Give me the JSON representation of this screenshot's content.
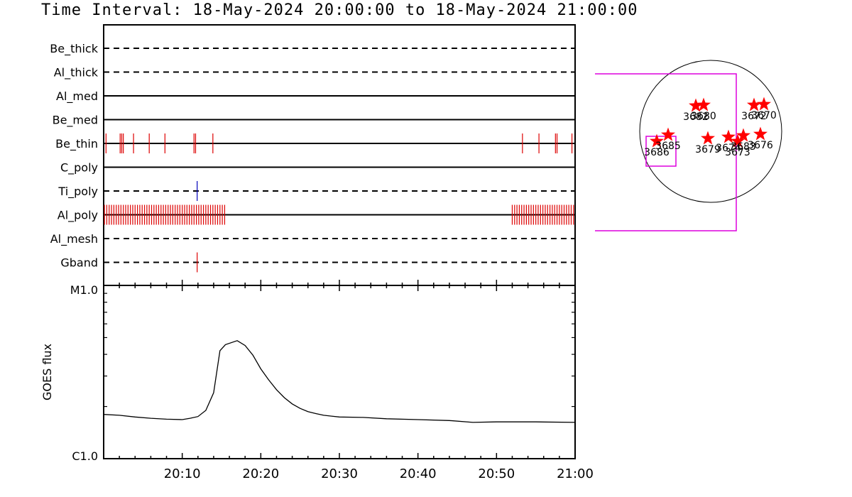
{
  "title": "Time Interval: 18-May-2024 20:00:00 to 18-May-2024 21:00:00",
  "colors": {
    "events": "#dd0000",
    "ti_event": "#0000bb",
    "frame": "#000000",
    "fov": "#dd00dd",
    "star": "#ff0000"
  },
  "chart_data": [
    {
      "type": "timeline",
      "channels": [
        {
          "label": "Be_thick",
          "style": "dashed",
          "events": []
        },
        {
          "label": "Al_thick",
          "style": "dashed",
          "events": []
        },
        {
          "label": "Al_med",
          "style": "solid",
          "events": []
        },
        {
          "label": "Be_med",
          "style": "solid",
          "events": []
        },
        {
          "label": "Be_thin",
          "style": "solid",
          "events": [
            0.3,
            2.1,
            2.3,
            2.5,
            3.8,
            5.8,
            7.8,
            11.5,
            11.7,
            13.9,
            53.3,
            55.4,
            57.5,
            57.7,
            59.6
          ]
        },
        {
          "label": "C_poly",
          "style": "solid",
          "events": []
        },
        {
          "label": "Ti_poly",
          "style": "dashed",
          "events": [
            11.9
          ],
          "event_color": "#0000bb"
        },
        {
          "label": "Al_poly",
          "style": "solid",
          "events": [
            0.1,
            0.4,
            0.7,
            1.0,
            1.3,
            1.6,
            1.9,
            2.2,
            2.5,
            2.8,
            3.1,
            3.4,
            3.7,
            4.0,
            4.3,
            4.6,
            4.9,
            5.2,
            5.5,
            5.8,
            6.1,
            6.4,
            6.7,
            7.0,
            7.3,
            7.6,
            7.9,
            8.2,
            8.5,
            8.8,
            9.1,
            9.4,
            9.7,
            10.0,
            10.3,
            10.6,
            10.9,
            11.2,
            11.5,
            11.8,
            12.1,
            12.4,
            12.7,
            13.0,
            13.3,
            13.6,
            13.9,
            14.2,
            14.5,
            14.8,
            15.1,
            15.4,
            52.0,
            52.3,
            52.6,
            52.9,
            53.2,
            53.5,
            53.8,
            54.1,
            54.4,
            54.7,
            55.0,
            55.3,
            55.6,
            55.9,
            56.2,
            56.5,
            56.8,
            57.1,
            57.4,
            57.7,
            58.0,
            58.3,
            58.6,
            58.9,
            59.2,
            59.5,
            59.8
          ]
        },
        {
          "label": "Al_mesh",
          "style": "dashed",
          "events": []
        },
        {
          "label": "Gband",
          "style": "dashed",
          "events": [
            11.9
          ]
        }
      ]
    },
    {
      "type": "line",
      "ylabel": "GOES flux",
      "ylim": [
        1e-06,
        1e-05
      ],
      "ytick_labels": [
        "M1.0",
        "C1.0"
      ],
      "xlim": [
        0,
        60
      ],
      "x_ticks": [
        10,
        20,
        30,
        40,
        50,
        60
      ],
      "x_tick_labels": [
        "20:10",
        "20:20",
        "20:30",
        "20:40",
        "20:50",
        "21:00"
      ],
      "x": [
        0,
        2,
        4,
        6,
        8,
        10,
        11,
        12,
        13,
        14,
        14.8,
        15.5,
        17,
        18,
        19,
        20,
        21,
        22,
        23,
        24,
        25,
        26,
        27,
        28,
        29,
        30,
        33,
        36,
        40,
        44,
        47,
        50,
        55,
        60
      ],
      "y": [
        1.8e-06,
        1.78e-06,
        1.74e-06,
        1.71e-06,
        1.69e-06,
        1.68e-06,
        1.71e-06,
        1.75e-06,
        1.9e-06,
        2.4e-06,
        4.2e-06,
        4.55e-06,
        4.8e-06,
        4.5e-06,
        3.95e-06,
        3.3e-06,
        2.85e-06,
        2.5e-06,
        2.25e-06,
        2.07e-06,
        1.95e-06,
        1.87e-06,
        1.82e-06,
        1.78e-06,
        1.76e-06,
        1.74e-06,
        1.73e-06,
        1.7e-06,
        1.68e-06,
        1.66e-06,
        1.62e-06,
        1.63e-06,
        1.63e-06,
        1.62e-06
      ]
    },
    {
      "type": "scatter",
      "description": "solar disk map with active regions",
      "regions": [
        {
          "id": "3686",
          "dx": -0.76,
          "dy": 0.14
        },
        {
          "id": "3685",
          "dx": -0.6,
          "dy": 0.05
        },
        {
          "id": "3682",
          "dx": -0.21,
          "dy": -0.36
        },
        {
          "id": "3680",
          "dx": -0.1,
          "dy": -0.37
        },
        {
          "id": "3679",
          "dx": -0.04,
          "dy": 0.1
        },
        {
          "id": "3674",
          "dx": 0.25,
          "dy": 0.08
        },
        {
          "id": "3673",
          "dx": 0.38,
          "dy": 0.14
        },
        {
          "id": "3683",
          "dx": 0.46,
          "dy": 0.06
        },
        {
          "id": "3676",
          "dx": 0.7,
          "dy": 0.04
        },
        {
          "id": "3672",
          "dx": 0.61,
          "dy": -0.37
        },
        {
          "id": "3670",
          "dx": 0.75,
          "dy": -0.38
        }
      ]
    }
  ]
}
